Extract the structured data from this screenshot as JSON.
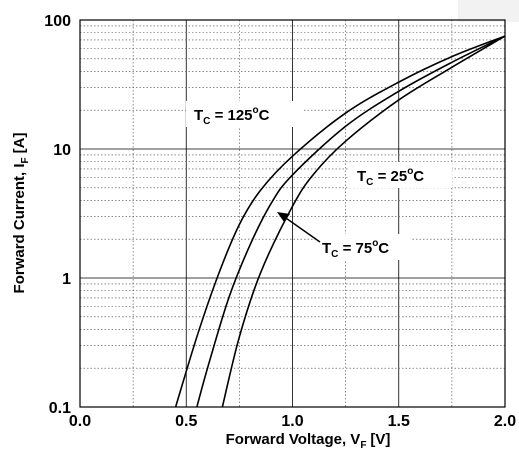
{
  "chart_data": {
    "type": "line",
    "xlabel": {
      "main": "Forward Voltage, V",
      "sub": "F",
      "unit": "[V]"
    },
    "ylabel": {
      "main": "Forward Current, I",
      "sub": "F",
      "unit": "[A]"
    },
    "xlim": [
      0.0,
      2.0
    ],
    "ylim": [
      0.1,
      100
    ],
    "yscale": "log",
    "grid": true,
    "x_tick_labels": [
      "0.0",
      "0.5",
      "1.0",
      "1.5",
      "2.0"
    ],
    "y_tick_labels": [
      "0.1",
      "1",
      "10",
      "100"
    ],
    "series": [
      {
        "name": "T_C = 125°C",
        "label": {
          "pre": "T",
          "sub": "C",
          "mid": " = 125",
          "sup": "o",
          "post": "C"
        },
        "x": [
          0.45,
          0.55,
          0.65,
          0.75,
          0.85,
          1.0,
          1.25,
          1.5,
          1.75,
          2.0
        ],
        "y": [
          0.1,
          0.35,
          1.05,
          2.6,
          4.8,
          8.8,
          19,
          33,
          52,
          75
        ]
      },
      {
        "name": "T_C = 75°C",
        "label": {
          "pre": "T",
          "sub": "C",
          "mid": " = 75",
          "sup": "o",
          "post": "C"
        },
        "x": [
          0.55,
          0.6,
          0.7,
          0.8,
          0.9,
          1.0,
          1.25,
          1.5,
          1.75,
          2.0
        ],
        "y": [
          0.1,
          0.2,
          0.7,
          1.8,
          3.8,
          6.3,
          15,
          28,
          47,
          75
        ]
      },
      {
        "name": "T_C = 25°C",
        "label": {
          "pre": "T",
          "sub": "C",
          "mid": " = 25",
          "sup": "o",
          "post": "C"
        },
        "x": [
          0.67,
          0.75,
          0.85,
          1.0,
          1.1,
          1.25,
          1.5,
          1.75,
          2.0
        ],
        "y": [
          0.1,
          0.35,
          1.1,
          3.6,
          6.4,
          11.5,
          24,
          43,
          75
        ]
      }
    ]
  }
}
